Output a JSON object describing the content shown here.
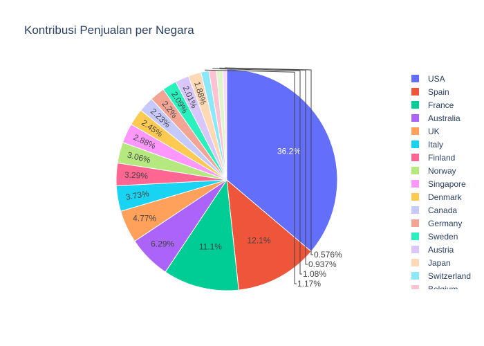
{
  "chart_data": {
    "type": "pie",
    "title": "Kontribusi Penjualan per Negara",
    "legend_position": "right",
    "slices": [
      {
        "label": "USA",
        "value": 36.2,
        "text": "36.2%",
        "color": "#636efa"
      },
      {
        "label": "Spain",
        "value": 12.1,
        "text": "12.1%",
        "color": "#EF553B"
      },
      {
        "label": "France",
        "value": 11.1,
        "text": "11.1%",
        "color": "#00cc96"
      },
      {
        "label": "Australia",
        "value": 6.29,
        "text": "6.29%",
        "color": "#ab63fa"
      },
      {
        "label": "UK",
        "value": 4.77,
        "text": "4.77%",
        "color": "#FFA15A"
      },
      {
        "label": "Italy",
        "value": 3.73,
        "text": "3.73%",
        "color": "#19d3f3"
      },
      {
        "label": "Finland",
        "value": 3.29,
        "text": "3.29%",
        "color": "#FF6692"
      },
      {
        "label": "Norway",
        "value": 3.06,
        "text": "3.06%",
        "color": "#B6E880"
      },
      {
        "label": "Singapore",
        "value": 2.88,
        "text": "2.88%",
        "color": "#FF97FF"
      },
      {
        "label": "Denmark",
        "value": 2.45,
        "text": "2.45%",
        "color": "#FECB52"
      },
      {
        "label": "Canada",
        "value": 2.23,
        "text": "2.23%",
        "color": "#c6c9fb"
      },
      {
        "label": "Germany",
        "value": 2.2,
        "text": "2.2%",
        "color": "#f2a595"
      },
      {
        "label": "Sweden",
        "value": 2.09,
        "text": "2.09%",
        "color": "#2af0bd"
      },
      {
        "label": "Austria",
        "value": 2.01,
        "text": "2.01%",
        "color": "#d9c6fb"
      },
      {
        "label": "Japan",
        "value": 1.88,
        "text": "1.88%",
        "color": "#ffd9b5"
      },
      {
        "label": "Switzerland",
        "value": 1.17,
        "text": "1.17%",
        "color": "#8ce7f8"
      },
      {
        "label": "Belgium",
        "value": 1.08,
        "text": "1.08%",
        "color": "#ffc2d3"
      },
      {
        "label": "",
        "value": 0.937,
        "text": "0.937%",
        "color": "#dff5cc"
      },
      {
        "label": "",
        "value": 0.576,
        "text": "0.576%",
        "color": "#fcd7fc"
      }
    ]
  }
}
